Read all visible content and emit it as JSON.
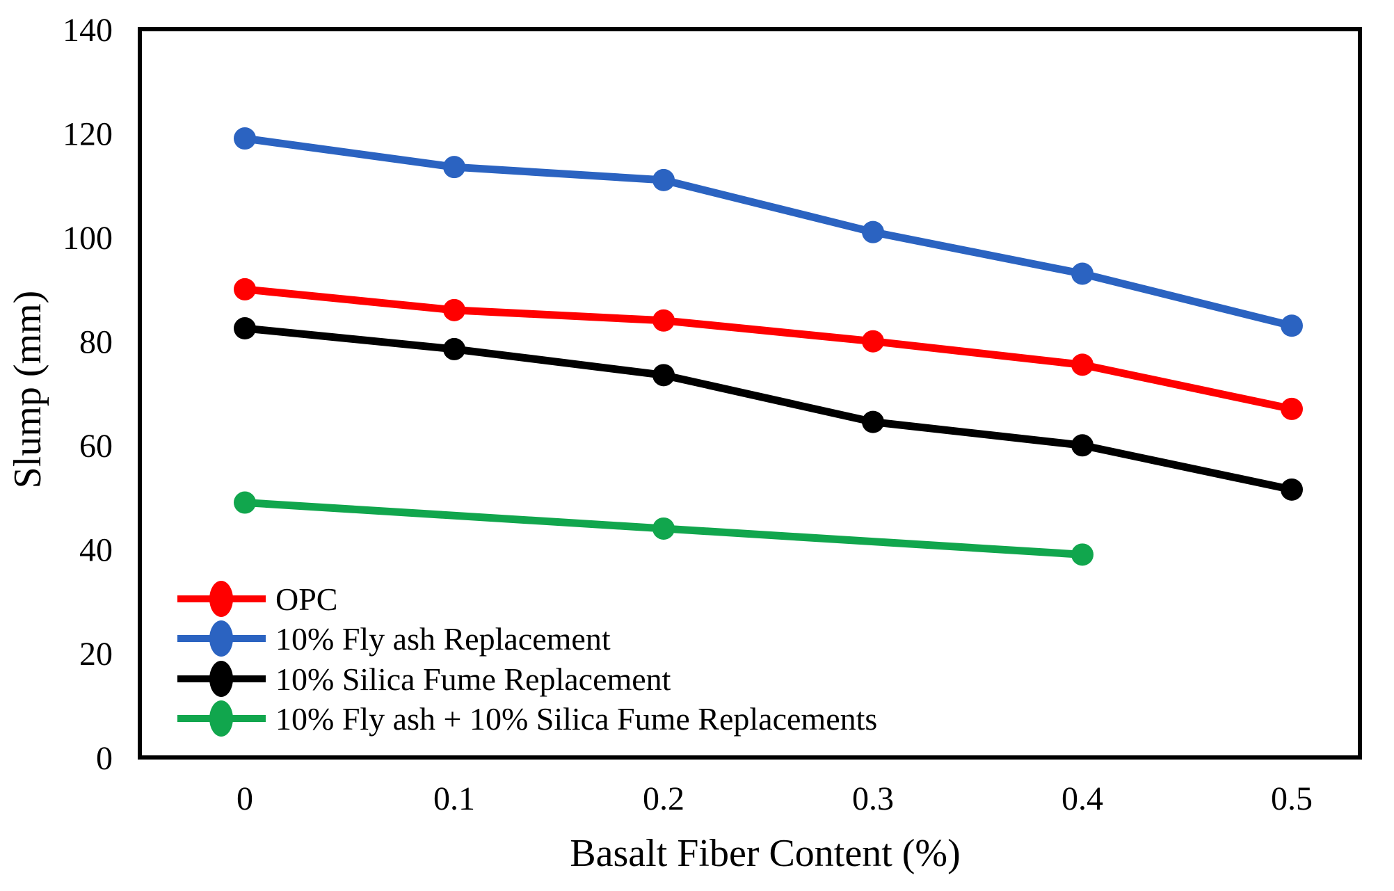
{
  "chart_data": {
    "type": "line",
    "title": "",
    "xlabel": "Basalt Fiber Content (%)",
    "ylabel": "Slump (mm)",
    "xlim": [
      0,
      0.5
    ],
    "ylim": [
      0,
      140
    ],
    "grid": false,
    "legend_position": "inside-bottom-left",
    "x_tick_values": [
      0,
      0.1,
      0.2,
      0.3,
      0.4,
      0.5
    ],
    "x_tick_labels": [
      "0",
      "0.1",
      "0.2",
      "0.3",
      "0.4",
      "0.5"
    ],
    "y_tick_values": [
      0,
      20,
      40,
      60,
      80,
      100,
      120,
      140
    ],
    "series": [
      {
        "name": "OPC",
        "color": "#FF0000",
        "x": [
          0,
          0.1,
          0.2,
          0.3,
          0.4,
          0.5
        ],
        "values": [
          90,
          86,
          84,
          80,
          75.5,
          67
        ]
      },
      {
        "name": "10% Fly ash Replacement",
        "color": "#2B63C1",
        "x": [
          0,
          0.1,
          0.2,
          0.3,
          0.4,
          0.5
        ],
        "values": [
          119,
          113.5,
          111,
          101,
          93,
          83
        ]
      },
      {
        "name": "10% Silica Fume Replacement",
        "color": "#000000",
        "x": [
          0,
          0.1,
          0.2,
          0.3,
          0.4,
          0.5
        ],
        "values": [
          82.5,
          78.5,
          73.5,
          64.5,
          60,
          51.5
        ]
      },
      {
        "name": "10% Fly ash + 10% Silica Fume Replacements",
        "color": "#11A64D",
        "x": [
          0,
          0.2,
          0.4
        ],
        "values": [
          49,
          44,
          39
        ]
      }
    ]
  }
}
